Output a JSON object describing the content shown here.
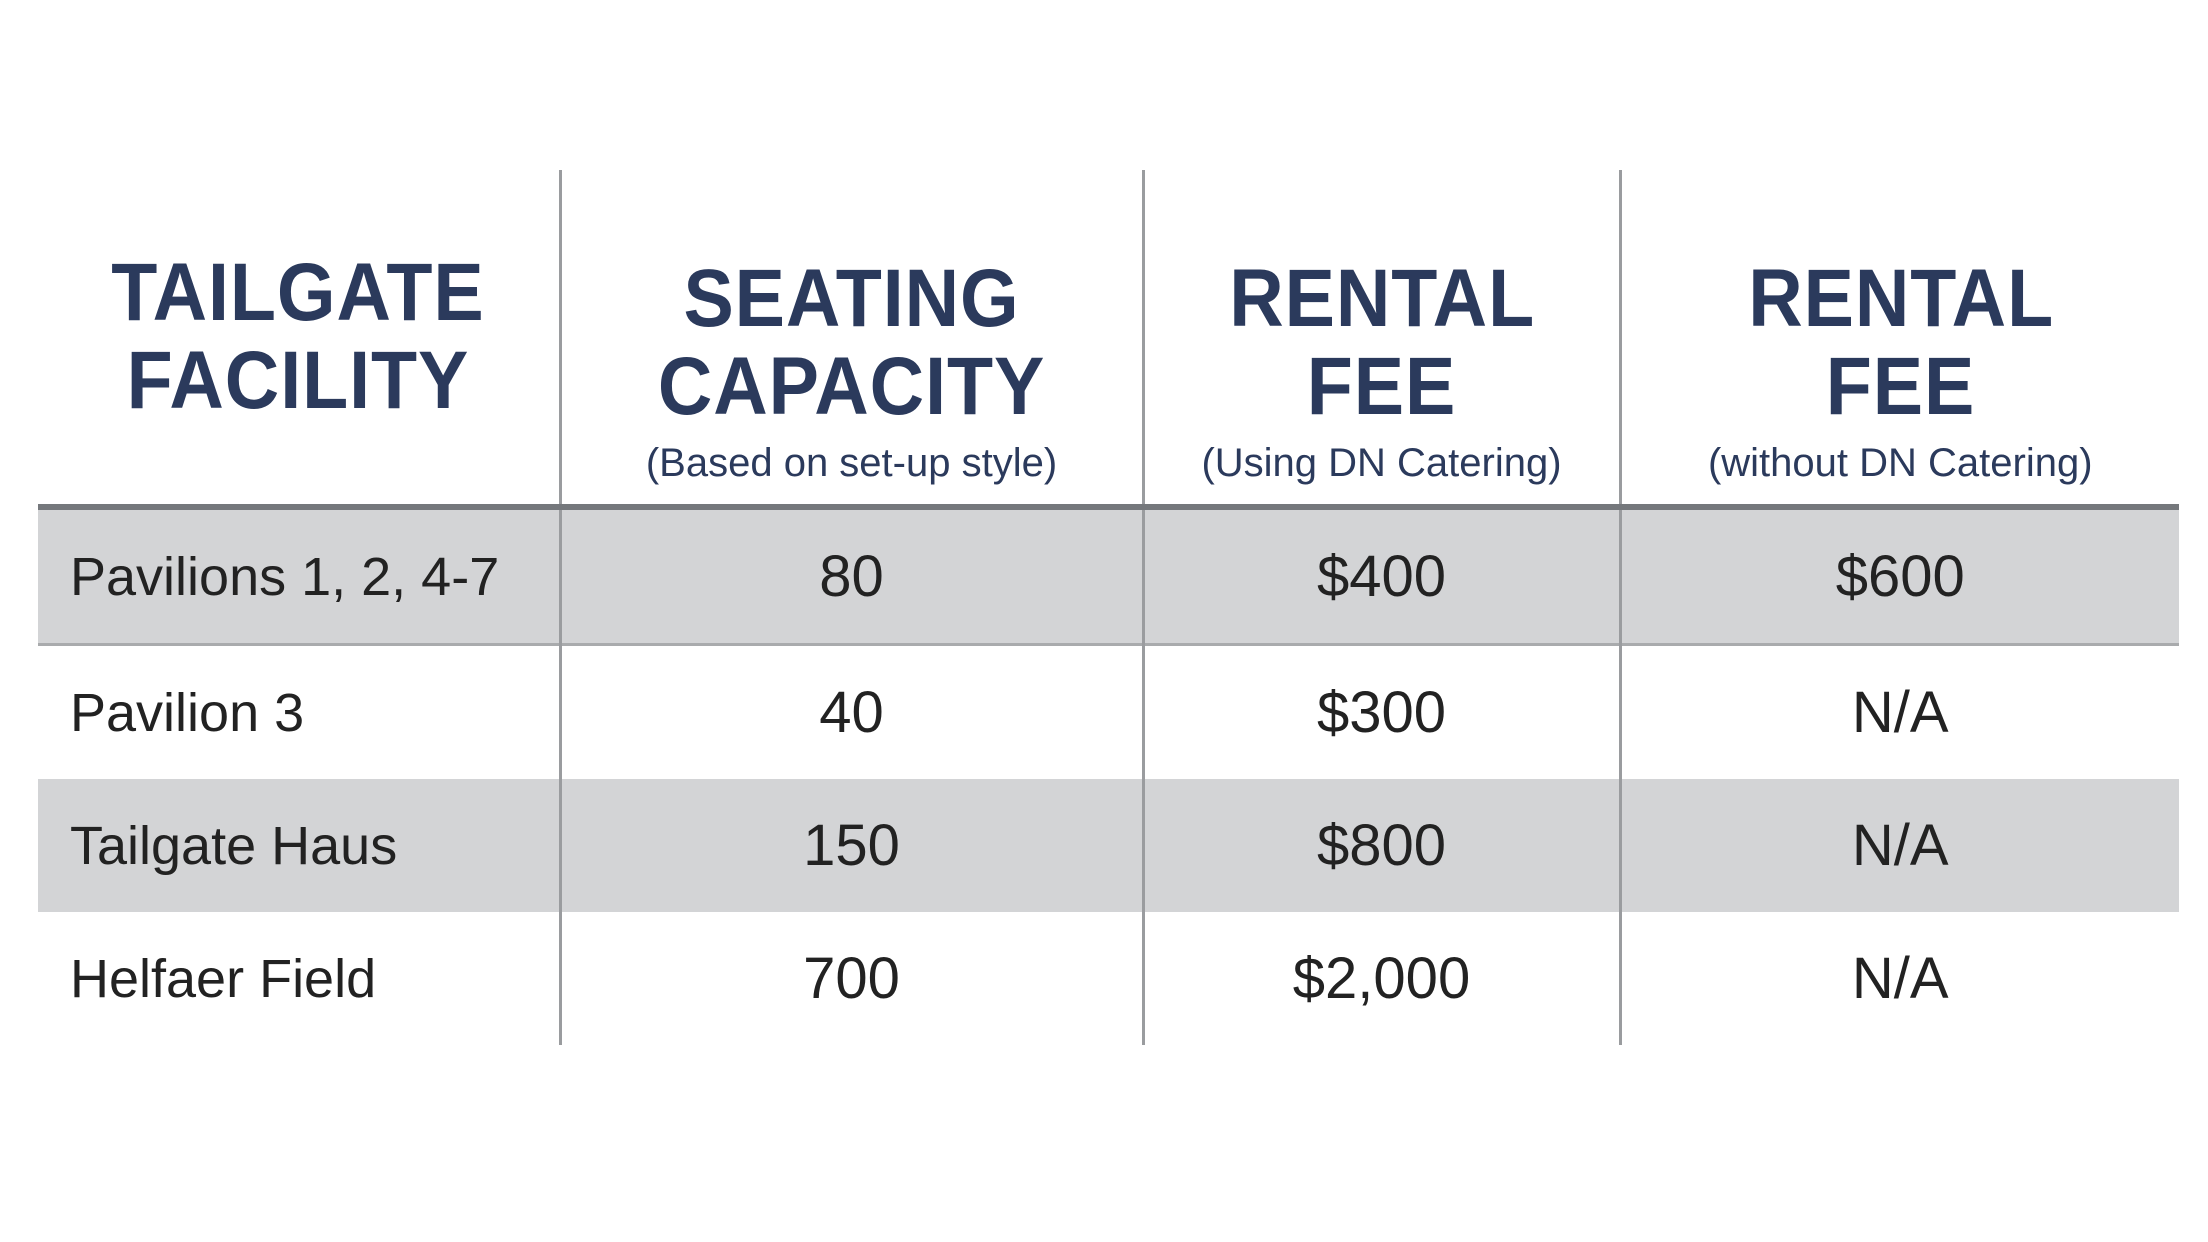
{
  "table": {
    "headers": [
      {
        "title": "TAILGATE FACILITY",
        "subtitle": null
      },
      {
        "title": "SEATING CAPACITY",
        "subtitle": "(Based on set-up style)"
      },
      {
        "title": "RENTAL FEE",
        "subtitle": "(Using DN Catering)"
      },
      {
        "title": "RENTAL FEE",
        "subtitle": "(without DN Catering)"
      }
    ],
    "rows": [
      [
        "Pavilions 1, 2, 4-7",
        "80",
        "$400",
        "$600"
      ],
      [
        "Pavilion 3",
        "40",
        "$300",
        "N/A"
      ],
      [
        "Tailgate Haus",
        "150",
        "$800",
        "N/A"
      ],
      [
        "Helfaer Field",
        "700",
        "$2,000",
        "N/A"
      ]
    ]
  }
}
